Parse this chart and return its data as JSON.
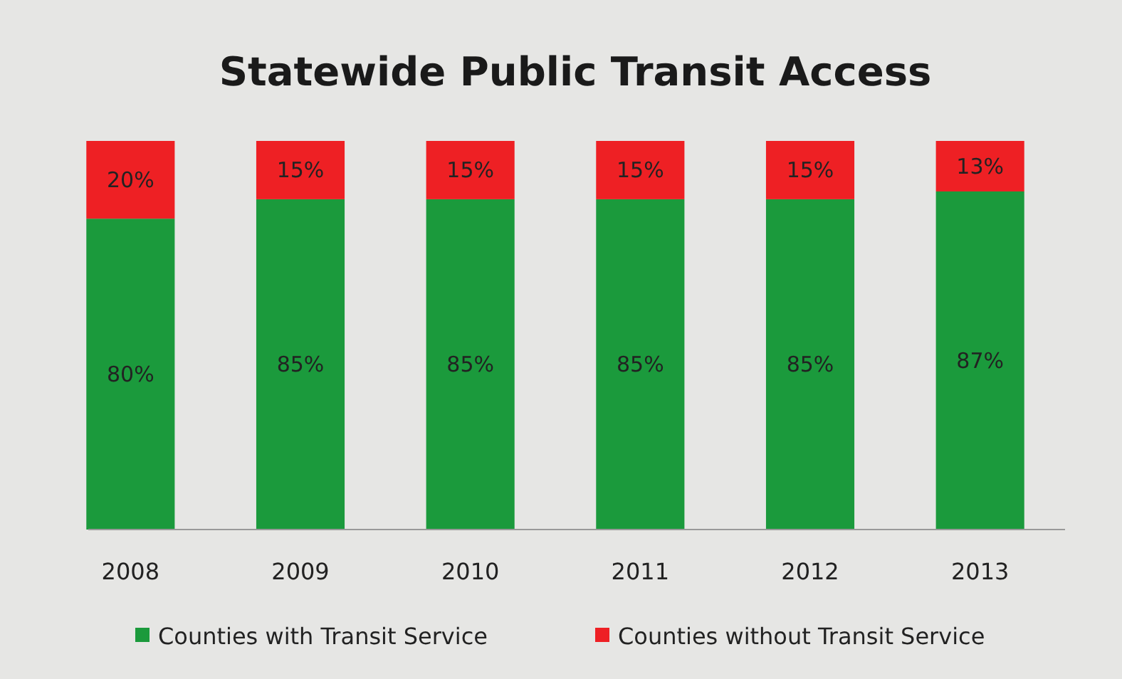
{
  "chart_data": {
    "type": "bar",
    "title": "Statewide Public Transit Access",
    "stacked": true,
    "legend": "bottom",
    "categories": [
      "2008",
      "2009",
      "2010",
      "2011",
      "2012",
      "2013"
    ],
    "series": [
      {
        "name": "Counties with Transit Service",
        "color": "#1b9a3c",
        "values": [
          80,
          85,
          85,
          85,
          85,
          87
        ],
        "value_labels": [
          "80%",
          "85%",
          "85%",
          "85%",
          "85%",
          "87%"
        ]
      },
      {
        "name": "Counties without Transit Service",
        "color": "#ee2024",
        "values": [
          20,
          15,
          15,
          15,
          15,
          13
        ],
        "value_labels": [
          "20%",
          "15%",
          "15%",
          "15%",
          "15%",
          "13%"
        ]
      }
    ]
  }
}
